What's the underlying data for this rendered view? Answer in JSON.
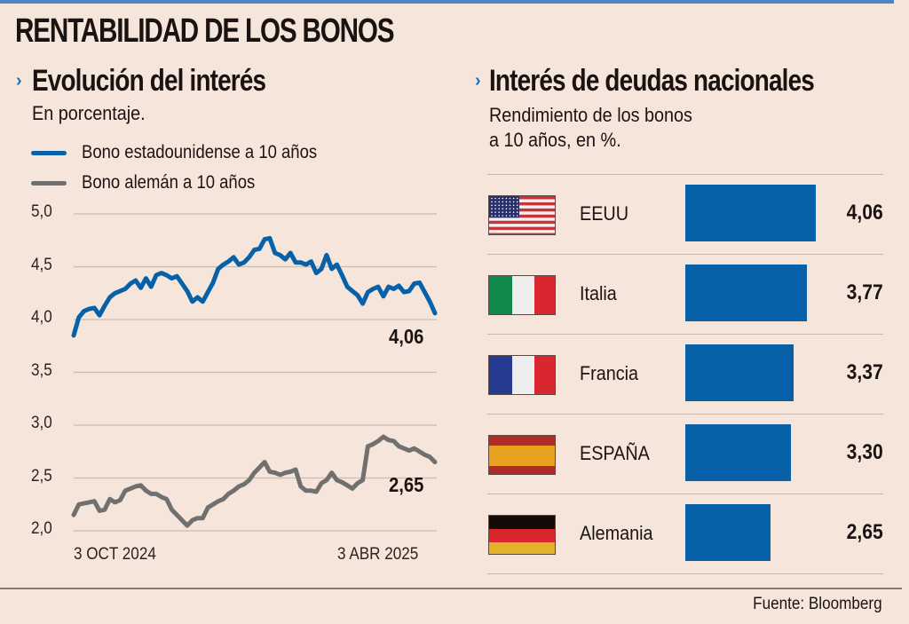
{
  "header": {
    "title": "RENTABILIDAD DE LOS BONOS"
  },
  "colors": {
    "background": "#f5e5da",
    "accent_blue": "#0761a8",
    "us_line": "#0761a8",
    "de_line": "#707070",
    "top_bar": "#4a87c2",
    "chevron": "#1d6fb8"
  },
  "chart_data": [
    {
      "type": "line",
      "title": "Evolución del interés",
      "subtitle": "En porcentaje.",
      "xlabel": "",
      "ylabel": "",
      "ylim": [
        2.0,
        5.0
      ],
      "yticks": [
        "5,0",
        "4,5",
        "4,0",
        "3,5",
        "3,0",
        "2,5",
        "2,0"
      ],
      "ytick_values": [
        5.0,
        4.5,
        4.0,
        3.5,
        3.0,
        2.5,
        2.0
      ],
      "xticks": [
        "3 OCT  2024",
        "3 ABR 2025"
      ],
      "grid": true,
      "legend_position": "top-left",
      "x": [
        0,
        1,
        2,
        3,
        4,
        5,
        6,
        7,
        8,
        9,
        10,
        11,
        12,
        13,
        14,
        15,
        16,
        17,
        18,
        19,
        20,
        21,
        22,
        23,
        24,
        25,
        26,
        27,
        28,
        29,
        30,
        31,
        32,
        33,
        34,
        35,
        36,
        37,
        38,
        39,
        40,
        41,
        42,
        43,
        44,
        45,
        46,
        47,
        48,
        49,
        50,
        51,
        52,
        53,
        54,
        55,
        56,
        57,
        58,
        59,
        60,
        61,
        62,
        63,
        64,
        65,
        66,
        67,
        68,
        69,
        70
      ],
      "series": [
        {
          "name": "Bono estadounidense a 10 años",
          "color": "#0761a8",
          "end_label": "4,06",
          "values": [
            3.85,
            4.02,
            4.08,
            4.1,
            4.11,
            4.04,
            4.13,
            4.21,
            4.25,
            4.27,
            4.29,
            4.34,
            4.37,
            4.3,
            4.39,
            4.31,
            4.42,
            4.44,
            4.42,
            4.39,
            4.41,
            4.34,
            4.27,
            4.17,
            4.21,
            4.17,
            4.26,
            4.35,
            4.48,
            4.52,
            4.55,
            4.59,
            4.52,
            4.54,
            4.59,
            4.66,
            4.67,
            4.76,
            4.77,
            4.63,
            4.61,
            4.57,
            4.63,
            4.54,
            4.54,
            4.52,
            4.55,
            4.44,
            4.48,
            4.61,
            4.48,
            4.52,
            4.42,
            4.31,
            4.27,
            4.23,
            4.15,
            4.26,
            4.29,
            4.31,
            4.22,
            4.31,
            4.29,
            4.32,
            4.26,
            4.27,
            4.34,
            4.35,
            4.26,
            4.17,
            4.06
          ]
        },
        {
          "name": "Bono alemán a 10 años",
          "color": "#707070",
          "end_label": "2,65",
          "values": [
            2.15,
            2.25,
            2.26,
            2.27,
            2.28,
            2.19,
            2.2,
            2.3,
            2.27,
            2.29,
            2.38,
            2.4,
            2.42,
            2.43,
            2.38,
            2.35,
            2.35,
            2.32,
            2.3,
            2.2,
            2.15,
            2.1,
            2.05,
            2.1,
            2.12,
            2.12,
            2.22,
            2.25,
            2.28,
            2.3,
            2.35,
            2.38,
            2.42,
            2.44,
            2.48,
            2.55,
            2.6,
            2.65,
            2.56,
            2.55,
            2.53,
            2.55,
            2.56,
            2.58,
            2.42,
            2.38,
            2.38,
            2.37,
            2.45,
            2.48,
            2.55,
            2.48,
            2.46,
            2.43,
            2.4,
            2.45,
            2.48,
            2.8,
            2.82,
            2.85,
            2.89,
            2.86,
            2.85,
            2.8,
            2.78,
            2.76,
            2.78,
            2.75,
            2.72,
            2.7,
            2.65
          ]
        }
      ]
    },
    {
      "type": "bar",
      "title": "Interés de deudas nacionales",
      "subtitle_line1": "Rendimiento de los bonos",
      "subtitle_line2": "a 10 años, en %.",
      "orientation": "horizontal",
      "categories": [
        "EEUU",
        "Italia",
        "Francia",
        "ESPAÑA",
        "Alemania"
      ],
      "values": [
        4.06,
        3.77,
        3.37,
        3.3,
        2.65
      ],
      "value_labels": [
        "4,06",
        "3,77",
        "3,37",
        "3,30",
        "2,65"
      ],
      "flags": [
        "us-flag-icon",
        "italy-flag-icon",
        "france-flag-icon",
        "spain-flag-icon",
        "germany-flag-icon"
      ],
      "color": "#0761a8"
    }
  ],
  "footer": {
    "source": "Fuente: Bloomberg"
  }
}
